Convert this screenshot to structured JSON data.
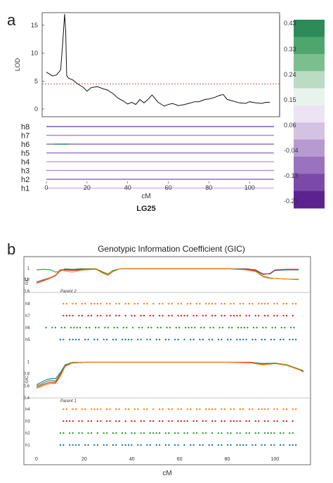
{
  "panel_a": {
    "label": "a",
    "lod_axis_label": "LOD",
    "lod_ticks": [
      "0",
      "5",
      "10",
      "15"
    ],
    "x_axis_label": "cM",
    "x_ticks": [
      "0",
      "20",
      "40",
      "60",
      "80",
      "100"
    ],
    "linkage_group": "LG25",
    "haplotype_labels": [
      "h8",
      "h7",
      "h6",
      "h5",
      "h4",
      "h3",
      "h2",
      "h1"
    ],
    "colorbar_labels": [
      "0.43",
      "0.33",
      "0.24",
      "0.15",
      "0.06",
      "-0.04",
      "-0.13",
      "-0.22"
    ],
    "colorbar_colors": [
      "#2e8b57",
      "#4ea56d",
      "#7bbf8f",
      "#b9dcc2",
      "#e8f3eb",
      "#ece4f2",
      "#d4c2e3",
      "#b79ad0",
      "#9a72bd",
      "#7b4aa8",
      "#5c2390"
    ],
    "threshold_color": "#d9534f"
  },
  "panel_b": {
    "label": "b",
    "title": "Genotypic Information Coefficient (GIC)",
    "gic_label": "GIC",
    "parent2_label": "Parent 2",
    "parent1_label": "Parent 1",
    "top_y_ticks": [
      "1",
      "0.8",
      "0.6"
    ],
    "bottom_y_ticks": [
      "1",
      "0.8",
      "0.6",
      "0.4"
    ],
    "top_haplotypes": [
      "h8",
      "h7",
      "h6",
      "h5"
    ],
    "bottom_haplotypes": [
      "h4",
      "h3",
      "h2",
      "h1"
    ],
    "x_ticks": [
      "0",
      "20",
      "40",
      "60",
      "80",
      "100"
    ],
    "x_axis_label": "cM",
    "series_colors": [
      "#1f77b4",
      "#2ca02c",
      "#d62728",
      "#ff7f0e"
    ]
  },
  "chart_data": [
    {
      "type": "line",
      "title": "",
      "xlabel": "cM",
      "ylabel": "LOD",
      "xlim": [
        0,
        112
      ],
      "ylim": [
        0,
        17
      ],
      "threshold": 4.5,
      "x": [
        0,
        3,
        5,
        7,
        8,
        9,
        9.5,
        10,
        11,
        13,
        15,
        18,
        20,
        22,
        25,
        28,
        30,
        33,
        35,
        38,
        40,
        42,
        44,
        46,
        48,
        50,
        52,
        55,
        58,
        60,
        62,
        65,
        68,
        70,
        73,
        75,
        78,
        80,
        83,
        85,
        87,
        89,
        92,
        95,
        98,
        100,
        103,
        106,
        108,
        110
      ],
      "values": [
        6.6,
        5.9,
        6.1,
        7.0,
        11.5,
        17.0,
        14.0,
        6.0,
        5.5,
        5.2,
        4.6,
        3.9,
        3.2,
        3.8,
        4.0,
        3.6,
        3.4,
        2.7,
        2.0,
        1.4,
        0.9,
        1.2,
        0.8,
        1.7,
        1.1,
        1.7,
        2.5,
        1.2,
        0.5,
        0.8,
        1.0,
        0.6,
        0.8,
        1.0,
        1.3,
        1.3,
        1.7,
        1.8,
        2.1,
        2.4,
        2.6,
        1.7,
        1.4,
        1.1,
        1.0,
        1.3,
        1.1,
        1.0,
        1.2,
        1.2
      ]
    },
    {
      "type": "line",
      "title": "Genotypic Information Coefficient (GIC)",
      "subtitle": "Parent 2",
      "xlabel": "cM",
      "ylabel": "GIC",
      "xlim": [
        0,
        112
      ],
      "ylim": [
        0.6,
        1.05
      ],
      "x": [
        0,
        3,
        6,
        8,
        10,
        12,
        15,
        18,
        20,
        25,
        28,
        30,
        32,
        35,
        40,
        50,
        60,
        70,
        80,
        88,
        92,
        95,
        98,
        100,
        105,
        110
      ],
      "series": [
        {
          "values": [
            0.76,
            0.8,
            0.84,
            0.88,
            0.97,
            0.98,
            0.97,
            0.98,
            0.98,
            0.98,
            0.92,
            0.89,
            0.95,
            0.99,
            0.99,
            0.99,
            0.99,
            0.99,
            0.99,
            0.99,
            0.97,
            0.9,
            0.9,
            0.96,
            0.97,
            0.97
          ]
        },
        {
          "values": [
            0.97,
            0.98,
            0.97,
            0.93,
            0.95,
            0.99,
            0.98,
            0.99,
            0.99,
            0.99,
            0.93,
            0.9,
            0.96,
            0.99,
            0.99,
            0.99,
            0.99,
            0.99,
            0.99,
            0.98,
            0.95,
            0.86,
            0.83,
            0.82,
            0.81,
            0.8
          ]
        },
        {
          "values": [
            0.74,
            0.78,
            0.83,
            0.87,
            0.96,
            0.97,
            0.96,
            0.97,
            0.98,
            0.98,
            0.91,
            0.88,
            0.94,
            0.99,
            0.99,
            0.99,
            0.99,
            0.99,
            0.99,
            0.98,
            0.96,
            0.89,
            0.91,
            0.97,
            0.98,
            0.98
          ]
        },
        {
          "values": [
            0.75,
            0.79,
            0.84,
            0.88,
            0.98,
            0.95,
            0.93,
            0.96,
            0.97,
            0.98,
            0.91,
            0.89,
            0.94,
            0.99,
            0.99,
            0.99,
            0.99,
            0.99,
            0.99,
            0.97,
            0.94,
            0.85,
            0.82,
            0.82,
            0.81,
            0.81
          ]
        }
      ]
    },
    {
      "type": "line",
      "title": "",
      "subtitle": "Parent 1",
      "xlabel": "cM",
      "ylabel": "GIC",
      "xlim": [
        0,
        112
      ],
      "ylim": [
        0.4,
        1.05
      ],
      "x": [
        0,
        2,
        4,
        6,
        8,
        10,
        12,
        15,
        20,
        30,
        40,
        50,
        60,
        70,
        80,
        90,
        95,
        100,
        105,
        110,
        112
      ],
      "series": [
        {
          "values": [
            0.62,
            0.66,
            0.7,
            0.72,
            0.72,
            0.82,
            0.95,
            0.99,
            0.99,
            0.99,
            0.99,
            0.99,
            0.99,
            0.99,
            0.99,
            0.99,
            0.97,
            0.98,
            0.95,
            0.88,
            0.85
          ]
        },
        {
          "values": [
            0.6,
            0.63,
            0.67,
            0.69,
            0.68,
            0.8,
            0.94,
            0.99,
            0.99,
            0.99,
            0.99,
            0.99,
            0.99,
            0.99,
            0.99,
            0.99,
            0.96,
            0.98,
            0.95,
            0.88,
            0.84
          ]
        },
        {
          "values": [
            0.58,
            0.61,
            0.64,
            0.66,
            0.66,
            0.78,
            0.93,
            0.98,
            0.99,
            0.99,
            0.99,
            0.99,
            0.99,
            0.99,
            0.99,
            0.99,
            0.95,
            0.97,
            0.94,
            0.87,
            0.84
          ]
        },
        {
          "values": [
            0.56,
            0.59,
            0.62,
            0.64,
            0.64,
            0.76,
            0.92,
            0.98,
            0.99,
            0.99,
            0.99,
            0.99,
            0.99,
            0.99,
            0.99,
            0.98,
            0.95,
            0.97,
            0.94,
            0.87,
            0.83
          ]
        }
      ]
    }
  ]
}
